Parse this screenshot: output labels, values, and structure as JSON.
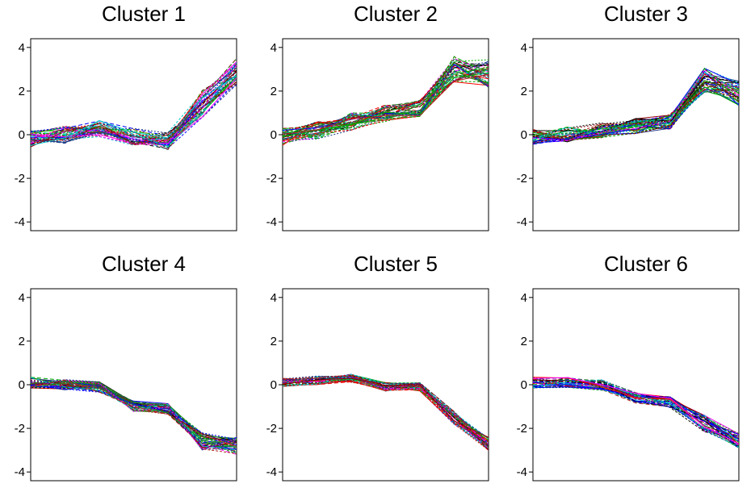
{
  "chart_data": [
    {
      "type": "line",
      "title": "Cluster 1",
      "ylim": [
        -4.4,
        4.4
      ],
      "yticks": [
        "4",
        "2",
        "0",
        "-2",
        "-4"
      ],
      "x": [
        1,
        2,
        3,
        4,
        5,
        6,
        7
      ],
      "center": [
        -0.2,
        0.0,
        0.3,
        -0.1,
        -0.3,
        1.4,
        2.9
      ],
      "spread": 0.4
    },
    {
      "type": "line",
      "title": "Cluster 2",
      "ylim": [
        -4.4,
        4.4
      ],
      "yticks": [
        "4",
        "2",
        "0",
        "-2",
        "-4"
      ],
      "x": [
        1,
        2,
        3,
        4,
        5,
        6,
        7
      ],
      "center": [
        -0.1,
        0.2,
        0.6,
        1.0,
        1.2,
        3.0,
        2.8
      ],
      "spread": 0.4
    },
    {
      "type": "line",
      "title": "Cluster 3",
      "ylim": [
        -4.4,
        4.4
      ],
      "yticks": [
        "4",
        "2",
        "0",
        "-2",
        "-4"
      ],
      "x": [
        1,
        2,
        3,
        4,
        5,
        6,
        7
      ],
      "center": [
        -0.1,
        0.0,
        0.2,
        0.4,
        0.6,
        2.5,
        1.9
      ],
      "spread": 0.35
    },
    {
      "type": "line",
      "title": "Cluster 4",
      "ylim": [
        -4.4,
        4.4
      ],
      "yticks": [
        "4",
        "2",
        "0",
        "-2",
        "-4"
      ],
      "x": [
        1,
        2,
        3,
        4,
        5,
        6,
        7
      ],
      "center": [
        0.1,
        0.0,
        -0.1,
        -1.0,
        -1.1,
        -2.6,
        -2.8
      ],
      "spread": 0.25
    },
    {
      "type": "line",
      "title": "Cluster 5",
      "ylim": [
        -4.4,
        4.4
      ],
      "yticks": [
        "4",
        "2",
        "0",
        "-2",
        "-4"
      ],
      "x": [
        1,
        2,
        3,
        4,
        5,
        6,
        7
      ],
      "center": [
        0.1,
        0.2,
        0.3,
        -0.1,
        -0.1,
        -1.5,
        -2.7
      ],
      "spread": 0.2
    },
    {
      "type": "line",
      "title": "Cluster 6",
      "ylim": [
        -4.4,
        4.4
      ],
      "yticks": [
        "4",
        "2",
        "0",
        "-2",
        "-4"
      ],
      "x": [
        1,
        2,
        3,
        4,
        5,
        6,
        7
      ],
      "center": [
        0.1,
        0.1,
        0.0,
        -0.6,
        -0.8,
        -1.8,
        -2.6
      ],
      "spread": 0.25
    }
  ],
  "colors": [
    "#000000",
    "#ff0000",
    "#00aa00",
    "#0000ff",
    "#00cccc",
    "#ff00ff",
    "#8b0000",
    "#228b22",
    "#1e3c8a",
    "#b22222"
  ]
}
